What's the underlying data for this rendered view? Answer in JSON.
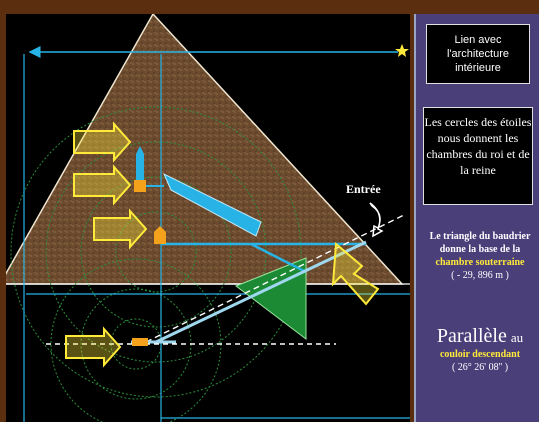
{
  "labels": {
    "entree": "Entrée"
  },
  "panel": {
    "box1": "Lien avec l'architecture intérieure",
    "box2": "Les cercles des étoiles nous donnent les chambres du roi et de la reine",
    "triangle_text": "Le triangle du baudrier donne la base de la",
    "triangle_highlight": "chambre souterraine",
    "triangle_coords": "( - 29, 896 m )",
    "parallele_big": "Parallèle",
    "parallele_au": "au",
    "parallele_highlight": "couloir descendant",
    "parallele_angle": "( 26° 26' 08'' )"
  },
  "colors": {
    "background": "#5a2e0e",
    "panel": "#4b3f7a",
    "yellow": "#ffea3a",
    "corridor": "#27b3e6",
    "green": "#1c8a35"
  }
}
